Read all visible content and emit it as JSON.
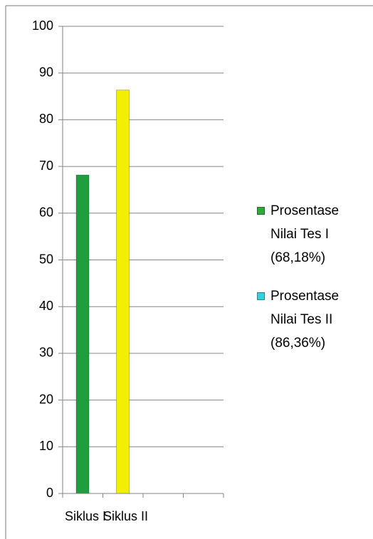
{
  "chart_data": {
    "type": "bar",
    "categories": [
      "Siklus I",
      "Siklus II",
      null,
      null
    ],
    "values": [
      68.18,
      86.36,
      null,
      null
    ],
    "bar_colors": [
      "#1e9e3e",
      "#f2f000",
      null,
      null
    ],
    "ylim": [
      0,
      100
    ],
    "yticks": [
      0,
      10,
      20,
      30,
      40,
      50,
      60,
      70,
      80,
      90,
      100
    ],
    "grid": true,
    "legend_position": "right",
    "legend": [
      {
        "name": "Prosentase Nilai Tes I (68,18%)",
        "color": "#2eaa3a"
      },
      {
        "name": "Prosentase Nilai Tes II (86,36%)",
        "color": "#33d0e0"
      }
    ]
  }
}
